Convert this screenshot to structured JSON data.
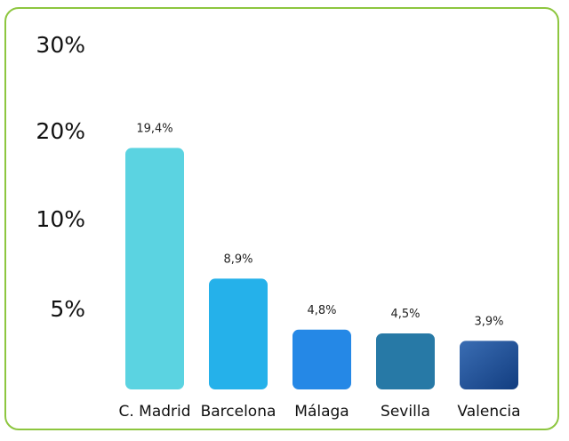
{
  "chart_data": {
    "type": "bar",
    "title": "",
    "xlabel": "",
    "ylabel": "",
    "categories": [
      "C. Madrid",
      "Barcelona",
      "Málaga",
      "Sevilla",
      "Valencia"
    ],
    "values": [
      19.4,
      8.9,
      4.8,
      4.5,
      3.9
    ],
    "value_labels": [
      "19,4%",
      "8,9%",
      "4,8%",
      "4,5%",
      "3,9%"
    ],
    "y_ticks": [
      {
        "value": 5,
        "label": "5%"
      },
      {
        "value": 10,
        "label": "10%"
      },
      {
        "value": 20,
        "label": "20%"
      },
      {
        "value": 30,
        "label": "30%"
      }
    ],
    "ylim": [
      0,
      30
    ],
    "grid": false,
    "legend": "none",
    "bar_colors": [
      "#5bd3e1",
      "#25b1ea",
      "#2588e6",
      "#2779a6",
      "#1f4f96"
    ],
    "border_color": "#8dc63f"
  }
}
